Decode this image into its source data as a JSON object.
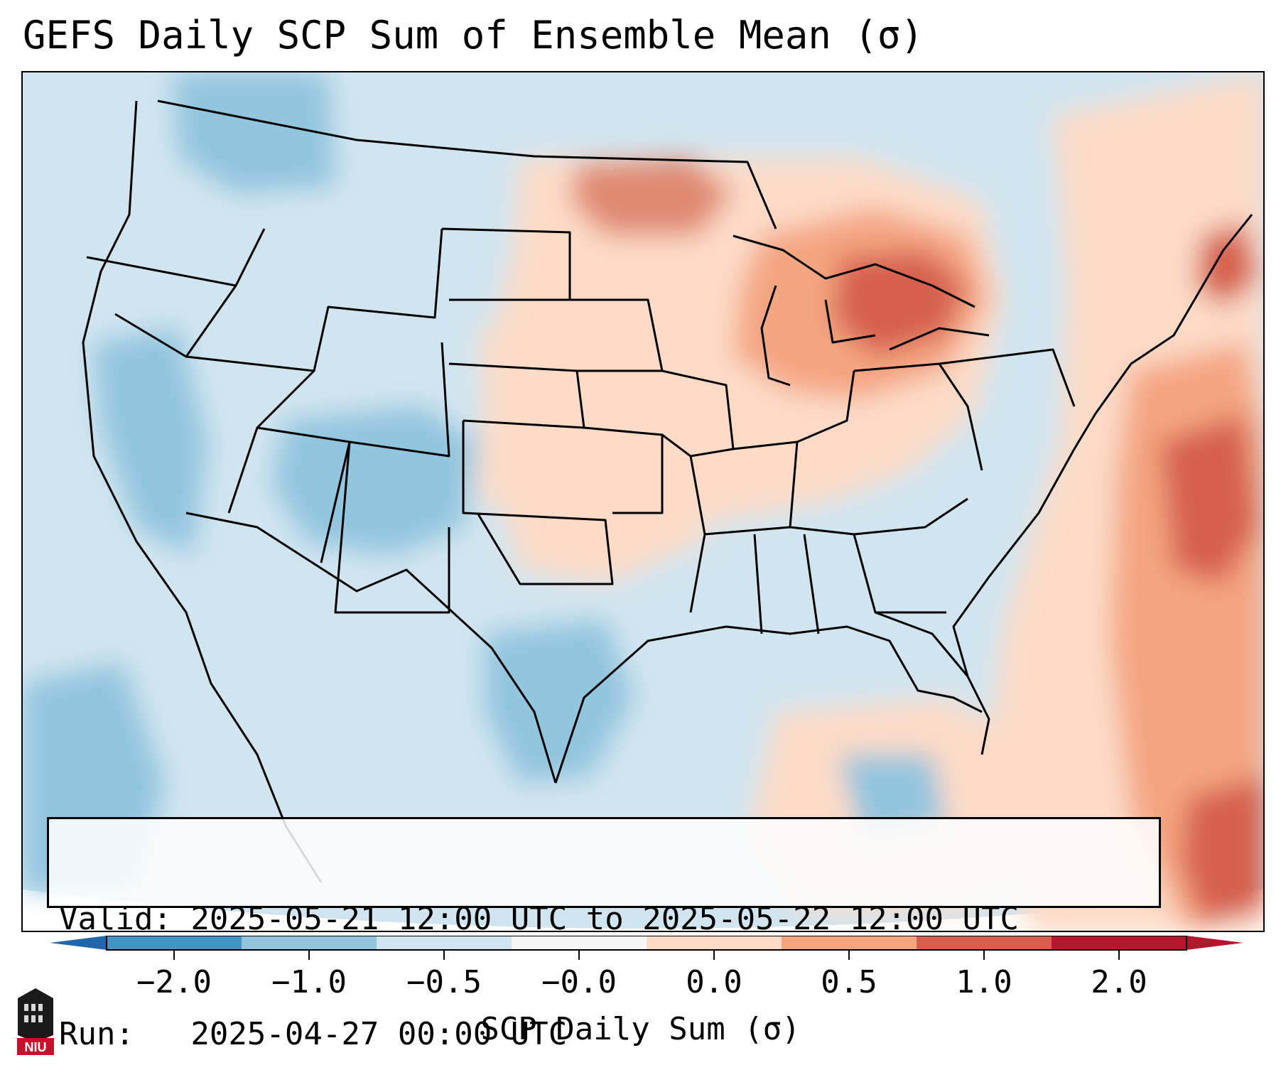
{
  "title": "GEFS Daily SCP Sum of Ensemble Mean (σ)",
  "valid_line": "Valid: 2025-05-21 12:00 UTC to 2025-05-22 12:00 UTC",
  "run_line": "Run:   2025-04-27 00:00 UTC",
  "colorbar": {
    "label": "SCP Daily Sum (σ)",
    "ticks": [
      "−2.0",
      "−1.0",
      "−0.5",
      "−0.0",
      "0.0",
      "0.5",
      "1.0",
      "2.0"
    ],
    "colors": [
      "#4393c3",
      "#92c5de",
      "#d1e5f0",
      "#f7f7f7",
      "#fddbc7",
      "#f4a582",
      "#d6604d",
      "#b2182b"
    ],
    "under_color": "#2166ac",
    "over_color": "#b2182b"
  },
  "map": {
    "region": "Contiguous United States",
    "background_color": "#d1e5f0",
    "anomaly_regions": [
      {
        "area": "Great Lakes",
        "level": "strong positive"
      },
      {
        "area": "Upper Midwest",
        "level": "positive"
      },
      {
        "area": "Western Atlantic",
        "level": "strong positive"
      },
      {
        "area": "Southern Plains",
        "level": "weak positive"
      },
      {
        "area": "Four Corners",
        "level": "negative"
      },
      {
        "area": "California coast",
        "level": "negative"
      },
      {
        "area": "West Texas",
        "level": "negative"
      }
    ]
  },
  "logo": {
    "text": "NIU"
  }
}
